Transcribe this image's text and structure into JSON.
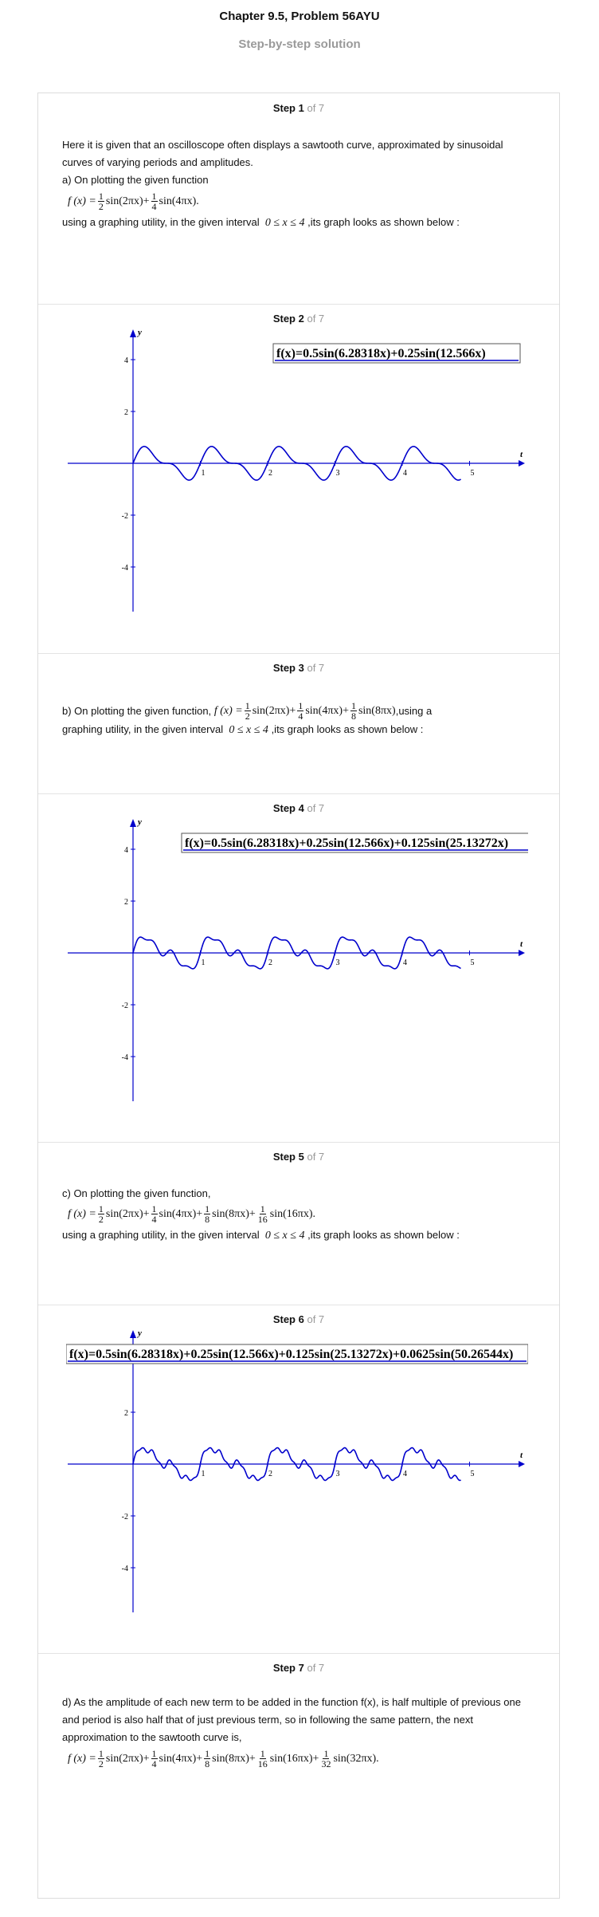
{
  "header": {
    "title": "Chapter 9.5, Problem 56AYU",
    "subtitle": "Step-by-step solution"
  },
  "steps": [
    {
      "label": "Step 1",
      "of": "of 7"
    },
    {
      "label": "Step 2",
      "of": "of 7"
    },
    {
      "label": "Step 3",
      "of": "of 7"
    },
    {
      "label": "Step 4",
      "of": "of 7"
    },
    {
      "label": "Step 5",
      "of": "of 7"
    },
    {
      "label": "Step 6",
      "of": "of 7"
    },
    {
      "label": "Step 7",
      "of": "of 7"
    }
  ],
  "step1": {
    "intro": "Here it is given that an oscilloscope often displays a sawtooth curve, approximated by sinusoidal curves of varying periods and amplitudes.",
    "part_a": "a) On plotting the given function",
    "usage_prefix": "using a graphing utility, in the given interval",
    "interval": "0 ≤ x ≤ 4",
    "usage_suffix": ",its graph looks as shown below :"
  },
  "step3": {
    "part_b": "b) On plotting the given function,",
    "usage_mid": ",using a",
    "usage_prefix": "graphing utility, in the given interval",
    "interval": "0 ≤ x ≤ 4",
    "usage_suffix": ",its graph looks as shown below :"
  },
  "step5": {
    "part_c": "c) On plotting the given function,",
    "usage_prefix": "using a graphing utility, in the given interval",
    "interval": "0 ≤ x ≤ 4",
    "usage_suffix": ",its graph looks as shown below :"
  },
  "step7": {
    "part_d": "d) As the amplitude of each new term to be added in the function f(x), is half multiple of previous one and period is also half that of just previous term, so in following the same pattern, the next approximation to the sawtooth curve is,"
  },
  "math": {
    "fx": "f (x) =",
    "sin2": "sin(2πx)",
    "sin4": "sin(4πx)",
    "sin8": "sin(8πx)",
    "sin16": "sin(16πx)",
    "sin32": "sin(32πx)",
    "plus": "+",
    "dot": ".",
    "one": "1",
    "d2": "2",
    "d4": "4",
    "d8": "8",
    "d16": "16",
    "d32": "32"
  },
  "chart_data": [
    {
      "type": "line",
      "legend": "f(x)=0.5sin(6.28318x)+0.25sin(12.566x)",
      "xlabel": "t",
      "ylabel": "y",
      "xticks": [
        "1",
        "2",
        "3",
        "4",
        "5"
      ],
      "yticks": [
        "4",
        "2",
        "-2",
        "-4"
      ],
      "xlim": [
        -1,
        6
      ],
      "ylim": [
        -5,
        5
      ],
      "series": [
        {
          "coefficients": [
            0.5,
            0.25
          ],
          "angular_freqs": [
            6.28318,
            12.566
          ]
        }
      ],
      "color": "#0000cc"
    },
    {
      "type": "line",
      "legend": "f(x)=0.5sin(6.28318x)+0.25sin(12.566x)+0.125sin(25.13272x)",
      "xlabel": "t",
      "ylabel": "y",
      "xticks": [
        "1",
        "2",
        "3",
        "4",
        "5"
      ],
      "yticks": [
        "4",
        "2",
        "-2",
        "-4"
      ],
      "xlim": [
        -1,
        6
      ],
      "ylim": [
        -5,
        5
      ],
      "series": [
        {
          "coefficients": [
            0.5,
            0.25,
            0.125
          ],
          "angular_freqs": [
            6.28318,
            12.566,
            25.13272
          ]
        }
      ],
      "color": "#0000cc"
    },
    {
      "type": "line",
      "legend": "f(x)=0.5sin(6.28318x)+0.25sin(12.566x)+0.125sin(25.13272x)+0.0625sin(50.26544x)",
      "xlabel": "t",
      "ylabel": "y",
      "xticks": [
        "1",
        "2",
        "3",
        "4",
        "5"
      ],
      "yticks": [
        "4",
        "2",
        "-2",
        "-4"
      ],
      "xlim": [
        -1,
        6
      ],
      "ylim": [
        -5,
        5
      ],
      "series": [
        {
          "coefficients": [
            0.5,
            0.25,
            0.125,
            0.0625
          ],
          "angular_freqs": [
            6.28318,
            12.566,
            25.13272,
            50.26544
          ]
        }
      ],
      "color": "#0000cc"
    }
  ]
}
